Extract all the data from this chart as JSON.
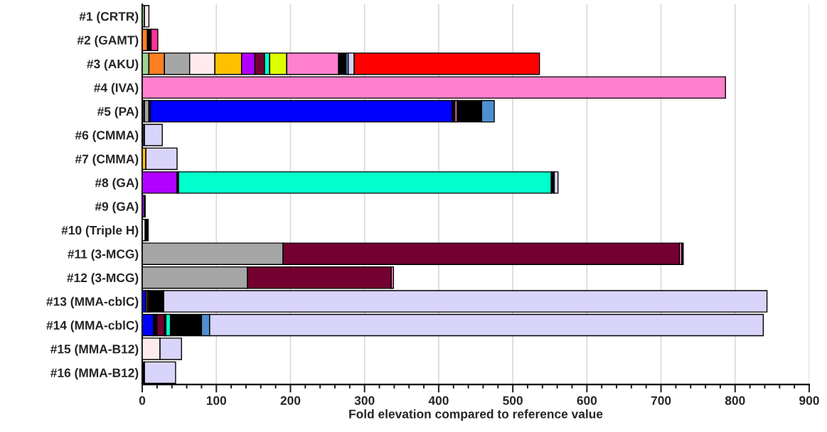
{
  "chart_data": {
    "type": "bar",
    "orientation": "horizontal",
    "stacked": true,
    "xlabel": "Fold elevation compared to reference value",
    "categories": [
      "#1 (CRTR)",
      "#2 (GAMT)",
      "#3 (AKU)",
      "#4 (IVA)",
      "#5 (PA)",
      "#6 (CMMA)",
      "#7 (CMMA)",
      "#8 (GA)",
      "#9 (GA)",
      "#10 (Triple H)",
      "#11 (3-MCG)",
      "#12 (3-MCG)",
      "#13 (MMA-cblC)",
      "#14 (MMA-cblC)",
      "#15 (MMA-B12)",
      "#16 (MMA-B12)"
    ],
    "series": [
      {
        "values": [
          3,
          7,
          9,
          787,
          3,
          3,
          5,
          47,
          3,
          4,
          190,
          142,
          5,
          15,
          24,
          3
        ],
        "colors": [
          "#98d594",
          "#fd7f23",
          "#98d594",
          "#ff80cc",
          "#1f3d1f",
          "#3d2b1f",
          "#ffc000",
          "#b000ff",
          "#b000ff",
          "#ffebee",
          "#a6a6a6",
          "#a6a6a6",
          "#0000ff",
          "#0000ff",
          "#ffebee",
          "#000000"
        ]
      },
      {
        "values": [
          6,
          5,
          21,
          null,
          6,
          24,
          42,
          2,
          1,
          4,
          535,
          194,
          2,
          5,
          29,
          42
        ],
        "colors": [
          "#ffebee",
          "#000000",
          "#fd7f23",
          null,
          "#a6a6a6",
          "#d9d4fa",
          "#d9d4fa",
          "#000000",
          "#000000",
          "#000000",
          "#730030",
          "#730030",
          "#ffc000",
          "#000000",
          "#d9d4fa",
          "#d9d4fa"
        ]
      },
      {
        "values": [
          null,
          9,
          34,
          null,
          2,
          null,
          null,
          503,
          null,
          null,
          3,
          3,
          2,
          10,
          null,
          null
        ],
        "colors": [
          null,
          "#ff3399",
          "#a6a6a6",
          null,
          "#3d2b1f",
          null,
          null,
          "#00ffcc",
          null,
          null,
          "#ff80cc",
          "#ff80cc",
          "#730030",
          "#730030",
          null,
          null
        ]
      },
      {
        "values": [
          null,
          null,
          34,
          null,
          407,
          null,
          null,
          4,
          null,
          null,
          2,
          null,
          20,
          2,
          null,
          null
        ],
        "colors": [
          null,
          null,
          "#ffebee",
          null,
          "#0000ff",
          null,
          null,
          "#000000",
          null,
          null,
          "#000000",
          null,
          "#000000",
          "#000000",
          null,
          null
        ]
      },
      {
        "values": [
          null,
          null,
          36,
          null,
          4,
          null,
          null,
          5,
          null,
          null,
          null,
          null,
          814,
          6,
          null,
          null
        ],
        "colors": [
          null,
          null,
          "#ffc000",
          null,
          "#000000",
          null,
          null,
          "#d9d4fa",
          null,
          null,
          null,
          null,
          "#d9d4fa",
          "#00ffcc",
          null,
          null
        ]
      },
      {
        "values": [
          null,
          null,
          18,
          null,
          3,
          null,
          null,
          null,
          null,
          null,
          null,
          null,
          null,
          42,
          null,
          null
        ],
        "colors": [
          null,
          null,
          "#b000ff",
          null,
          "#ff80cc",
          null,
          null,
          null,
          null,
          null,
          null,
          null,
          null,
          "#000000",
          null,
          null
        ]
      },
      {
        "values": [
          null,
          null,
          13,
          null,
          33,
          null,
          null,
          null,
          null,
          null,
          null,
          null,
          null,
          11,
          null,
          null
        ],
        "colors": [
          null,
          null,
          "#730030",
          null,
          "#000000",
          null,
          null,
          null,
          null,
          null,
          null,
          null,
          null,
          "#4f8fd0",
          null,
          null
        ]
      },
      {
        "values": [
          null,
          null,
          7,
          null,
          17,
          null,
          null,
          null,
          null,
          null,
          null,
          null,
          null,
          747,
          null,
          null
        ],
        "colors": [
          null,
          null,
          "#00ffcc",
          null,
          "#4f8fd0",
          null,
          null,
          null,
          null,
          null,
          null,
          null,
          null,
          "#d9d4fa",
          null,
          null
        ]
      },
      {
        "values": [
          null,
          null,
          23,
          null,
          null,
          null,
          null,
          null,
          null,
          null,
          null,
          null,
          null,
          null,
          null,
          null
        ],
        "colors": [
          null,
          null,
          "#ddff00",
          null,
          null,
          null,
          null,
          null,
          null,
          null,
          null,
          null,
          null,
          null,
          null,
          null
        ]
      },
      {
        "values": [
          null,
          null,
          70,
          null,
          null,
          null,
          null,
          null,
          null,
          null,
          null,
          null,
          null,
          null,
          null,
          null
        ],
        "colors": [
          null,
          null,
          "#ff80cc",
          null,
          null,
          null,
          null,
          null,
          null,
          null,
          null,
          null,
          null,
          null,
          null,
          null
        ]
      },
      {
        "values": [
          null,
          null,
          10,
          null,
          null,
          null,
          null,
          null,
          null,
          null,
          null,
          null,
          null,
          null,
          null,
          null
        ],
        "colors": [
          null,
          null,
          "#000000",
          null,
          null,
          null,
          null,
          null,
          null,
          null,
          null,
          null,
          null,
          null,
          null,
          null
        ]
      },
      {
        "values": [
          null,
          null,
          3,
          null,
          null,
          null,
          null,
          null,
          null,
          null,
          null,
          null,
          null,
          null,
          null,
          null
        ],
        "colors": [
          null,
          null,
          "#4f8fd0",
          null,
          null,
          null,
          null,
          null,
          null,
          null,
          null,
          null,
          null,
          null,
          null,
          null
        ]
      },
      {
        "values": [
          null,
          null,
          8,
          null,
          null,
          null,
          null,
          null,
          null,
          null,
          null,
          null,
          null,
          null,
          null,
          null
        ],
        "colors": [
          null,
          null,
          "#d9d4fa",
          null,
          null,
          null,
          null,
          null,
          null,
          null,
          null,
          null,
          null,
          null,
          null,
          null
        ]
      },
      {
        "values": [
          null,
          null,
          250,
          null,
          null,
          null,
          null,
          null,
          null,
          null,
          null,
          null,
          null,
          null,
          null,
          null
        ],
        "colors": [
          null,
          null,
          "#ff0000",
          null,
          null,
          null,
          null,
          null,
          null,
          null,
          null,
          null,
          null,
          null,
          null,
          null
        ]
      }
    ],
    "xlim": [
      0,
      900
    ],
    "xticks": [
      0,
      {
        "value": 20,
        "label": null
      },
      {
        "value": 40,
        "label": null
      },
      {
        "value": 60,
        "label": null
      },
      {
        "value": 80,
        "label": null
      },
      100,
      {
        "value": 120,
        "label": null
      },
      {
        "value": 140,
        "label": null
      },
      {
        "value": 160,
        "label": null
      },
      {
        "value": 180,
        "label": null
      },
      200,
      {
        "value": 220,
        "label": null
      },
      {
        "value": 240,
        "label": null
      },
      {
        "value": 260,
        "label": null
      },
      {
        "value": 280,
        "label": null
      },
      300,
      {
        "value": 320,
        "label": null
      },
      {
        "value": 340,
        "label": null
      },
      {
        "value": 360,
        "label": null
      },
      {
        "value": 380,
        "label": null
      },
      400,
      {
        "value": 420,
        "label": null
      },
      {
        "value": 440,
        "label": null
      },
      {
        "value": 460,
        "label": null
      },
      {
        "value": 480,
        "label": null
      },
      500,
      {
        "value": 520,
        "label": null
      },
      {
        "value": 540,
        "label": null
      },
      {
        "value": 560,
        "label": null
      },
      {
        "value": 580,
        "label": null
      },
      600,
      {
        "value": 620,
        "label": null
      },
      {
        "value": 640,
        "label": null
      },
      {
        "value": 660,
        "label": null
      },
      {
        "value": 680,
        "label": null
      },
      700,
      {
        "value": 720,
        "label": null
      },
      {
        "value": 740,
        "label": null
      },
      {
        "value": 760,
        "label": null
      },
      {
        "value": 780,
        "label": null
      },
      800,
      {
        "value": 820,
        "label": null
      },
      {
        "value": 840,
        "label": null
      },
      {
        "value": 860,
        "label": null
      },
      {
        "value": 880,
        "label": null
      },
      900
    ],
    "grid": "x"
  }
}
